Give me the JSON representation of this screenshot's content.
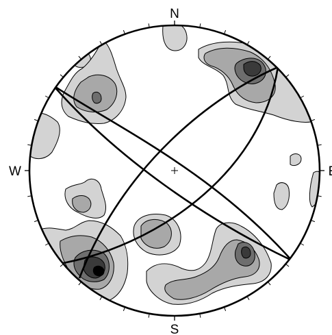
{
  "diagram": {
    "type": "stereonet-density-contour",
    "labels": {
      "north": "N",
      "south": "S",
      "west": "W",
      "east": "E"
    },
    "center_mark": "+",
    "contour_fills": [
      "#d3d3d3",
      "#a8a8a8",
      "#6e6e6e",
      "#3a3a3a",
      "#000000"
    ],
    "great_circle_count": 4
  }
}
